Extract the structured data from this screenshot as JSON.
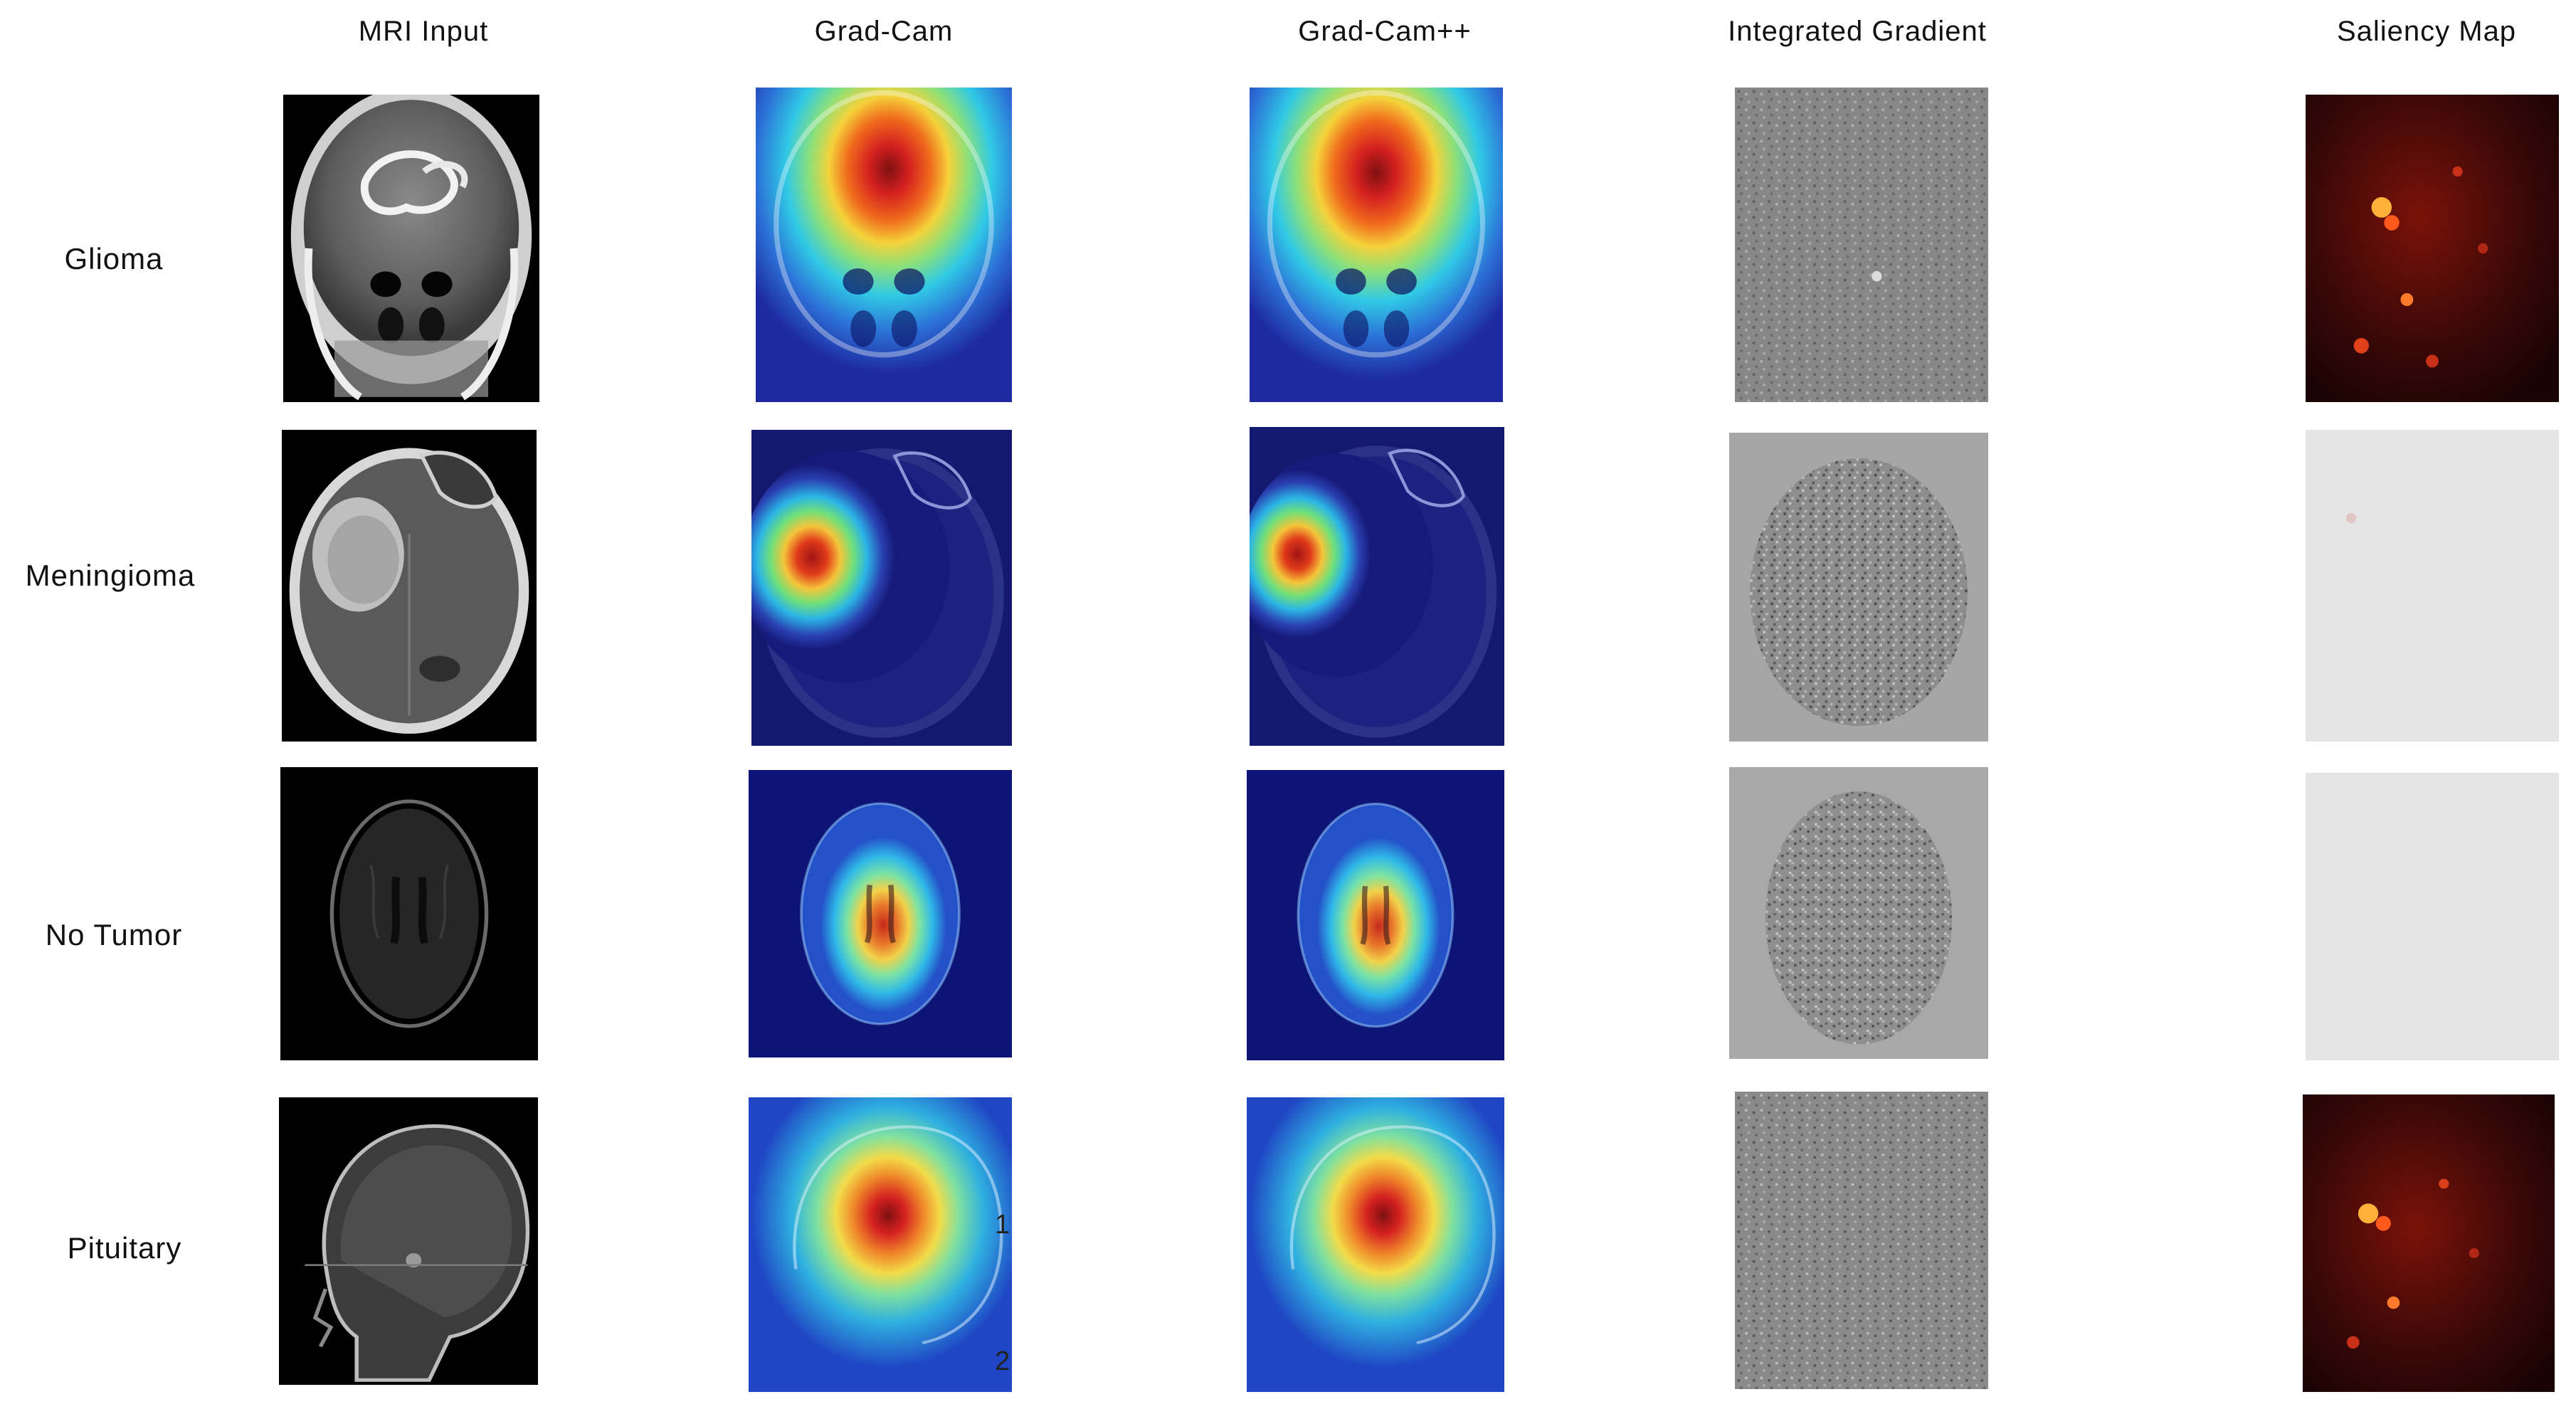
{
  "columns": [
    "MRI Input",
    "Grad-Cam",
    "Grad-Cam++",
    "Integrated Gradient",
    "Saliency Map"
  ],
  "rows": [
    "Glioma",
    "Meningioma",
    "No Tumor",
    "Pituitary"
  ],
  "edge_ticks": {
    "one": "1",
    "two": "2"
  },
  "colors": {
    "gradcam_low": "#1a1a9c",
    "gradcam_mid": "#22d3ee",
    "gradcam_high": "#b91c1c",
    "ig_gray": "#8a8a8a",
    "saliency_dark": "#2a0505",
    "saliency_hot": "#ff3b14",
    "saliency_blank": "#e6e6e6"
  }
}
